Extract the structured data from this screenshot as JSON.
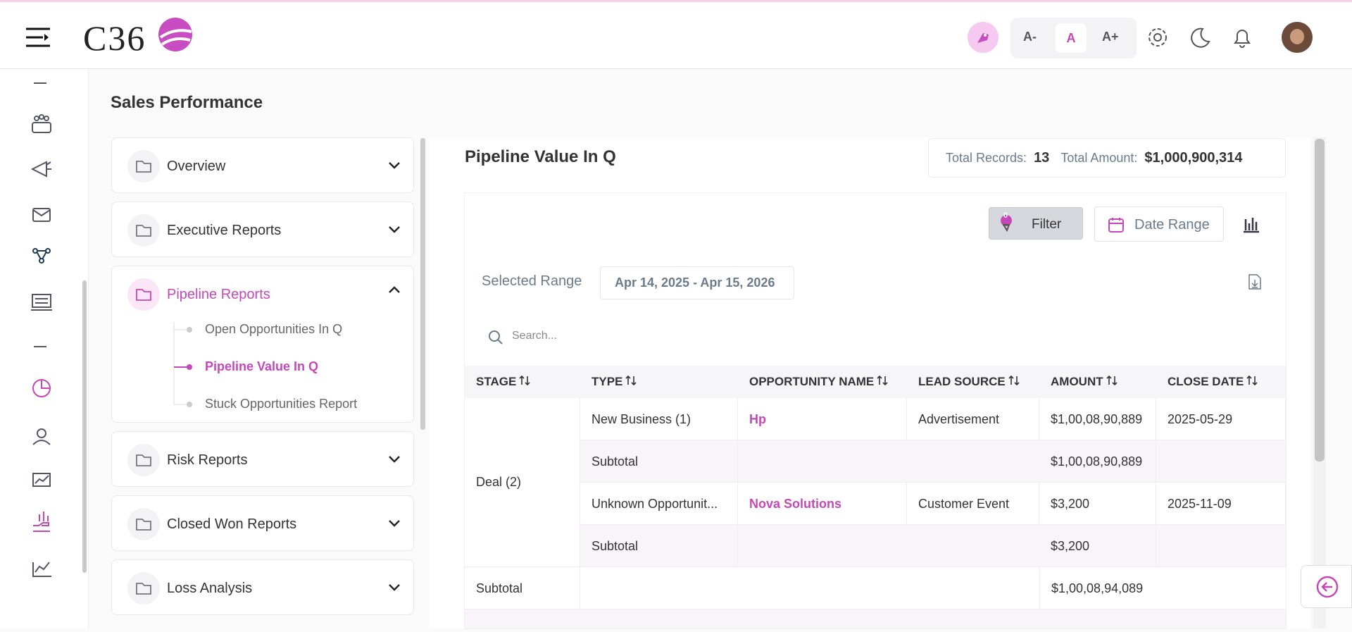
{
  "header": {
    "logo": "C36",
    "font_sizes": [
      "A-",
      "A",
      "A+"
    ]
  },
  "page_title": "Sales Performance",
  "nav": [
    {
      "label": "Overview"
    },
    {
      "label": "Executive Reports"
    },
    {
      "label": "Pipeline Reports",
      "expanded": true,
      "items": [
        "Open Opportunities In Q",
        "Pipeline Value In Q",
        "Stuck Opportunities Report"
      ],
      "active": 1
    },
    {
      "label": "Risk Reports"
    },
    {
      "label": "Closed Won Reports"
    },
    {
      "label": "Loss Analysis"
    }
  ],
  "report": {
    "title": "Pipeline Value In Q",
    "total_records_label": "Total Records:",
    "total_records": "13",
    "total_amount_label": "Total Amount:",
    "total_amount": "$1,000,900,314",
    "filter": "Filter",
    "filter_count": "0",
    "date_range": "Date Range",
    "selected_range_label": "Selected Range",
    "selected_range": "Apr 14, 2025 - Apr 15, 2026",
    "search_placeholder": "Search...",
    "columns": [
      "STAGE",
      "TYPE",
      "OPPORTUNITY NAME",
      "LEAD SOURCE",
      "AMOUNT",
      "CLOSE DATE"
    ],
    "groups": [
      {
        "stage": "Deal (2)",
        "rows": [
          {
            "type": "New Business (1)",
            "opportunity": "Hp",
            "lead_source": "Advertisement",
            "amount": "$1,00,08,90,889",
            "close_date": "2025-05-29"
          },
          {
            "type": "Subtotal",
            "amount": "$1,00,08,90,889"
          },
          {
            "type": "Unknown Opportunit...",
            "opportunity": "Nova Solutions",
            "lead_source": "Customer Event",
            "amount": "$3,200",
            "close_date": "2025-11-09"
          },
          {
            "type": "Subtotal",
            "amount": "$3,200"
          }
        ]
      }
    ],
    "subtotal": {
      "stage": "Subtotal",
      "amount": "$1,00,08,94,089"
    }
  }
}
